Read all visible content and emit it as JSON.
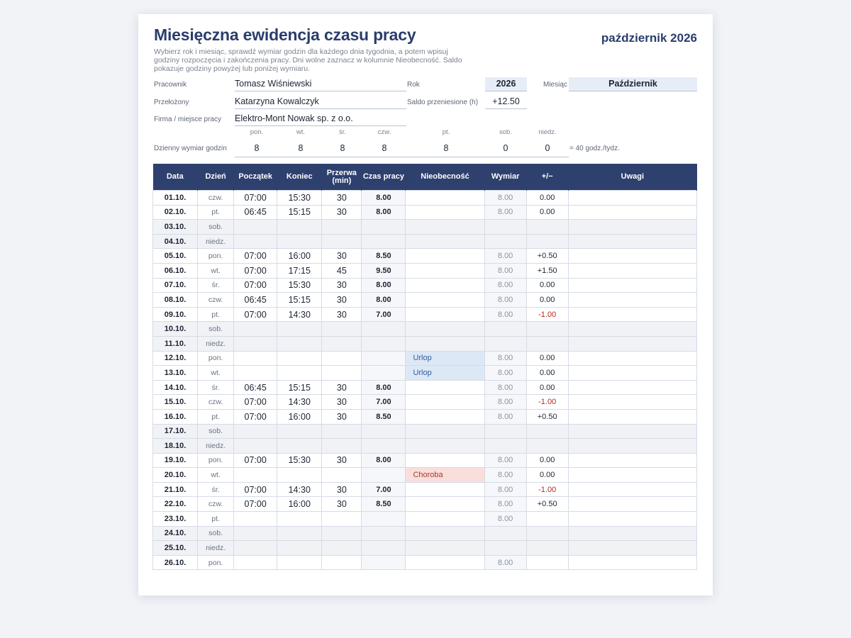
{
  "header": {
    "title": "Miesięczna ewidencja czasu pracy",
    "month_label": "październik 2026",
    "description": "Wybierz rok i miesiąc, sprawdź wymiar godzin dla każdego dnia tygodnia, a potem wpisuj godziny rozpoczęcia i zakończenia pracy. Dni wolne zaznacz w kolumnie Nieobecność. Saldo pokazuje godziny powyżej lub poniżej wymiaru."
  },
  "form": {
    "employee_label": "Pracownik",
    "employee_value": "Tomasz Wiśniewski",
    "supervisor_label": "Przełożony",
    "supervisor_value": "Katarzyna Kowalczyk",
    "company_label": "Firma / miejsce pracy",
    "company_value": "Elektro-Mont Nowak sp. z o.o.",
    "year_label": "Rok",
    "year_value": "2026",
    "month_label": "Miesiąc",
    "month_value": "Październik",
    "carried_label": "Saldo przeniesione (h)",
    "carried_value": "+12.50"
  },
  "daily_norm": {
    "label": "Dzienny wymiar godzin",
    "days": [
      "pon.",
      "wt.",
      "śr.",
      "czw.",
      "pt.",
      "sob.",
      "niedz."
    ],
    "values": [
      "8",
      "8",
      "8",
      "8",
      "8",
      "0",
      "0"
    ],
    "weekly_note": "= 40 godz./tydz."
  },
  "table": {
    "headers": [
      "Data",
      "Dzień",
      "Początek",
      "Koniec",
      "Przerwa (min)",
      "Czas pracy",
      "Nieobecność",
      "Wymiar",
      "+/−",
      "Uwagi"
    ],
    "rows": [
      {
        "date": "01.10.",
        "day": "czw.",
        "start": "07:00",
        "end": "15:30",
        "brk": "30",
        "dur": "8.00",
        "abs": "",
        "norm": "8.00",
        "bal": "0.00",
        "note": ""
      },
      {
        "date": "02.10.",
        "day": "pt.",
        "start": "06:45",
        "end": "15:15",
        "brk": "30",
        "dur": "8.00",
        "abs": "",
        "norm": "8.00",
        "bal": "0.00",
        "note": ""
      },
      {
        "date": "03.10.",
        "day": "sob.",
        "start": "",
        "end": "",
        "brk": "",
        "dur": "",
        "abs": "",
        "norm": "",
        "bal": "",
        "note": ""
      },
      {
        "date": "04.10.",
        "day": "niedz.",
        "start": "",
        "end": "",
        "brk": "",
        "dur": "",
        "abs": "",
        "norm": "",
        "bal": "",
        "note": ""
      },
      {
        "date": "05.10.",
        "day": "pon.",
        "start": "07:00",
        "end": "16:00",
        "brk": "30",
        "dur": "8.50",
        "abs": "",
        "norm": "8.00",
        "bal": "+0.50",
        "note": ""
      },
      {
        "date": "06.10.",
        "day": "wt.",
        "start": "07:00",
        "end": "17:15",
        "brk": "45",
        "dur": "9.50",
        "abs": "",
        "norm": "8.00",
        "bal": "+1.50",
        "note": ""
      },
      {
        "date": "07.10.",
        "day": "śr.",
        "start": "07:00",
        "end": "15:30",
        "brk": "30",
        "dur": "8.00",
        "abs": "",
        "norm": "8.00",
        "bal": "0.00",
        "note": ""
      },
      {
        "date": "08.10.",
        "day": "czw.",
        "start": "06:45",
        "end": "15:15",
        "brk": "30",
        "dur": "8.00",
        "abs": "",
        "norm": "8.00",
        "bal": "0.00",
        "note": ""
      },
      {
        "date": "09.10.",
        "day": "pt.",
        "start": "07:00",
        "end": "14:30",
        "brk": "30",
        "dur": "7.00",
        "abs": "",
        "norm": "8.00",
        "bal": "-1.00",
        "note": ""
      },
      {
        "date": "10.10.",
        "day": "sob.",
        "start": "",
        "end": "",
        "brk": "",
        "dur": "",
        "abs": "",
        "norm": "",
        "bal": "",
        "note": ""
      },
      {
        "date": "11.10.",
        "day": "niedz.",
        "start": "",
        "end": "",
        "brk": "",
        "dur": "",
        "abs": "",
        "norm": "",
        "bal": "",
        "note": ""
      },
      {
        "date": "12.10.",
        "day": "pon.",
        "start": "",
        "end": "",
        "brk": "",
        "dur": "",
        "abs": "Urlop",
        "norm": "8.00",
        "bal": "0.00",
        "note": ""
      },
      {
        "date": "13.10.",
        "day": "wt.",
        "start": "",
        "end": "",
        "brk": "",
        "dur": "",
        "abs": "Urlop",
        "norm": "8.00",
        "bal": "0.00",
        "note": ""
      },
      {
        "date": "14.10.",
        "day": "śr.",
        "start": "06:45",
        "end": "15:15",
        "brk": "30",
        "dur": "8.00",
        "abs": "",
        "norm": "8.00",
        "bal": "0.00",
        "note": ""
      },
      {
        "date": "15.10.",
        "day": "czw.",
        "start": "07:00",
        "end": "14:30",
        "brk": "30",
        "dur": "7.00",
        "abs": "",
        "norm": "8.00",
        "bal": "-1.00",
        "note": ""
      },
      {
        "date": "16.10.",
        "day": "pt.",
        "start": "07:00",
        "end": "16:00",
        "brk": "30",
        "dur": "8.50",
        "abs": "",
        "norm": "8.00",
        "bal": "+0.50",
        "note": ""
      },
      {
        "date": "17.10.",
        "day": "sob.",
        "start": "",
        "end": "",
        "brk": "",
        "dur": "",
        "abs": "",
        "norm": "",
        "bal": "",
        "note": ""
      },
      {
        "date": "18.10.",
        "day": "niedz.",
        "start": "",
        "end": "",
        "brk": "",
        "dur": "",
        "abs": "",
        "norm": "",
        "bal": "",
        "note": ""
      },
      {
        "date": "19.10.",
        "day": "pon.",
        "start": "07:00",
        "end": "15:30",
        "brk": "30",
        "dur": "8.00",
        "abs": "",
        "norm": "8.00",
        "bal": "0.00",
        "note": ""
      },
      {
        "date": "20.10.",
        "day": "wt.",
        "start": "",
        "end": "",
        "brk": "",
        "dur": "",
        "abs": "Choroba",
        "norm": "8.00",
        "bal": "0.00",
        "note": ""
      },
      {
        "date": "21.10.",
        "day": "śr.",
        "start": "07:00",
        "end": "14:30",
        "brk": "30",
        "dur": "7.00",
        "abs": "",
        "norm": "8.00",
        "bal": "-1.00",
        "note": ""
      },
      {
        "date": "22.10.",
        "day": "czw.",
        "start": "07:00",
        "end": "16:00",
        "brk": "30",
        "dur": "8.50",
        "abs": "",
        "norm": "8.00",
        "bal": "+0.50",
        "note": ""
      },
      {
        "date": "23.10.",
        "day": "pt.",
        "start": "",
        "end": "",
        "brk": "",
        "dur": "",
        "abs": "",
        "norm": "8.00",
        "bal": "",
        "note": ""
      },
      {
        "date": "24.10.",
        "day": "sob.",
        "start": "",
        "end": "",
        "brk": "",
        "dur": "",
        "abs": "",
        "norm": "",
        "bal": "",
        "note": ""
      },
      {
        "date": "25.10.",
        "day": "niedz.",
        "start": "",
        "end": "",
        "brk": "",
        "dur": "",
        "abs": "",
        "norm": "",
        "bal": "",
        "note": ""
      },
      {
        "date": "26.10.",
        "day": "pon.",
        "start": "",
        "end": "",
        "brk": "",
        "dur": "",
        "abs": "",
        "norm": "8.00",
        "bal": "",
        "note": ""
      }
    ]
  }
}
